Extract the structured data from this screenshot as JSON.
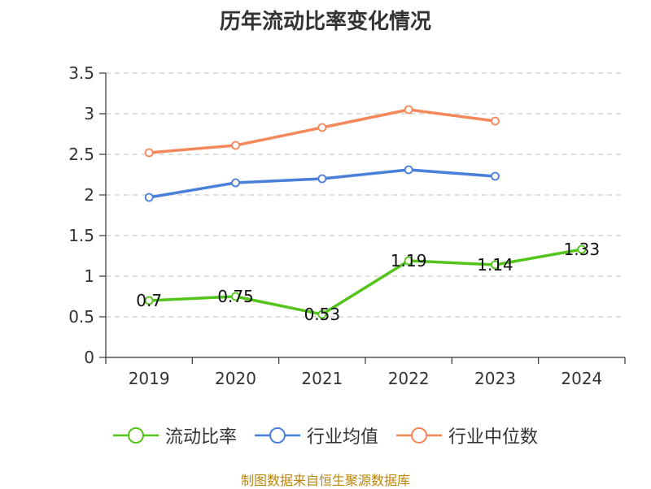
{
  "chart_data": {
    "type": "line",
    "title": "历年流动比率变化情况",
    "categories": [
      "2019",
      "2020",
      "2021",
      "2022",
      "2023",
      "2024"
    ],
    "ylim": [
      0,
      3.5
    ],
    "yticks": [
      "0",
      "0.5",
      "1",
      "1.5",
      "2",
      "2.5",
      "3",
      "3.5"
    ],
    "grid": true,
    "legend_position": "bottom",
    "series": [
      {
        "name": "流动比率",
        "color": "#52c41a",
        "values": [
          0.7,
          0.75,
          0.53,
          1.19,
          1.14,
          1.33
        ],
        "labels": [
          "0.7",
          "0.75",
          "0.53",
          "1.19",
          "1.14",
          "1.33"
        ]
      },
      {
        "name": "行业均值",
        "color": "#4a7fd9",
        "values": [
          1.97,
          2.15,
          2.2,
          2.31,
          2.23,
          null
        ]
      },
      {
        "name": "行业中位数",
        "color": "#f5885a",
        "values": [
          2.52,
          2.61,
          2.83,
          3.05,
          2.91,
          null
        ]
      }
    ]
  },
  "footer": {
    "source": "制图数据来自恒生聚源数据库"
  }
}
